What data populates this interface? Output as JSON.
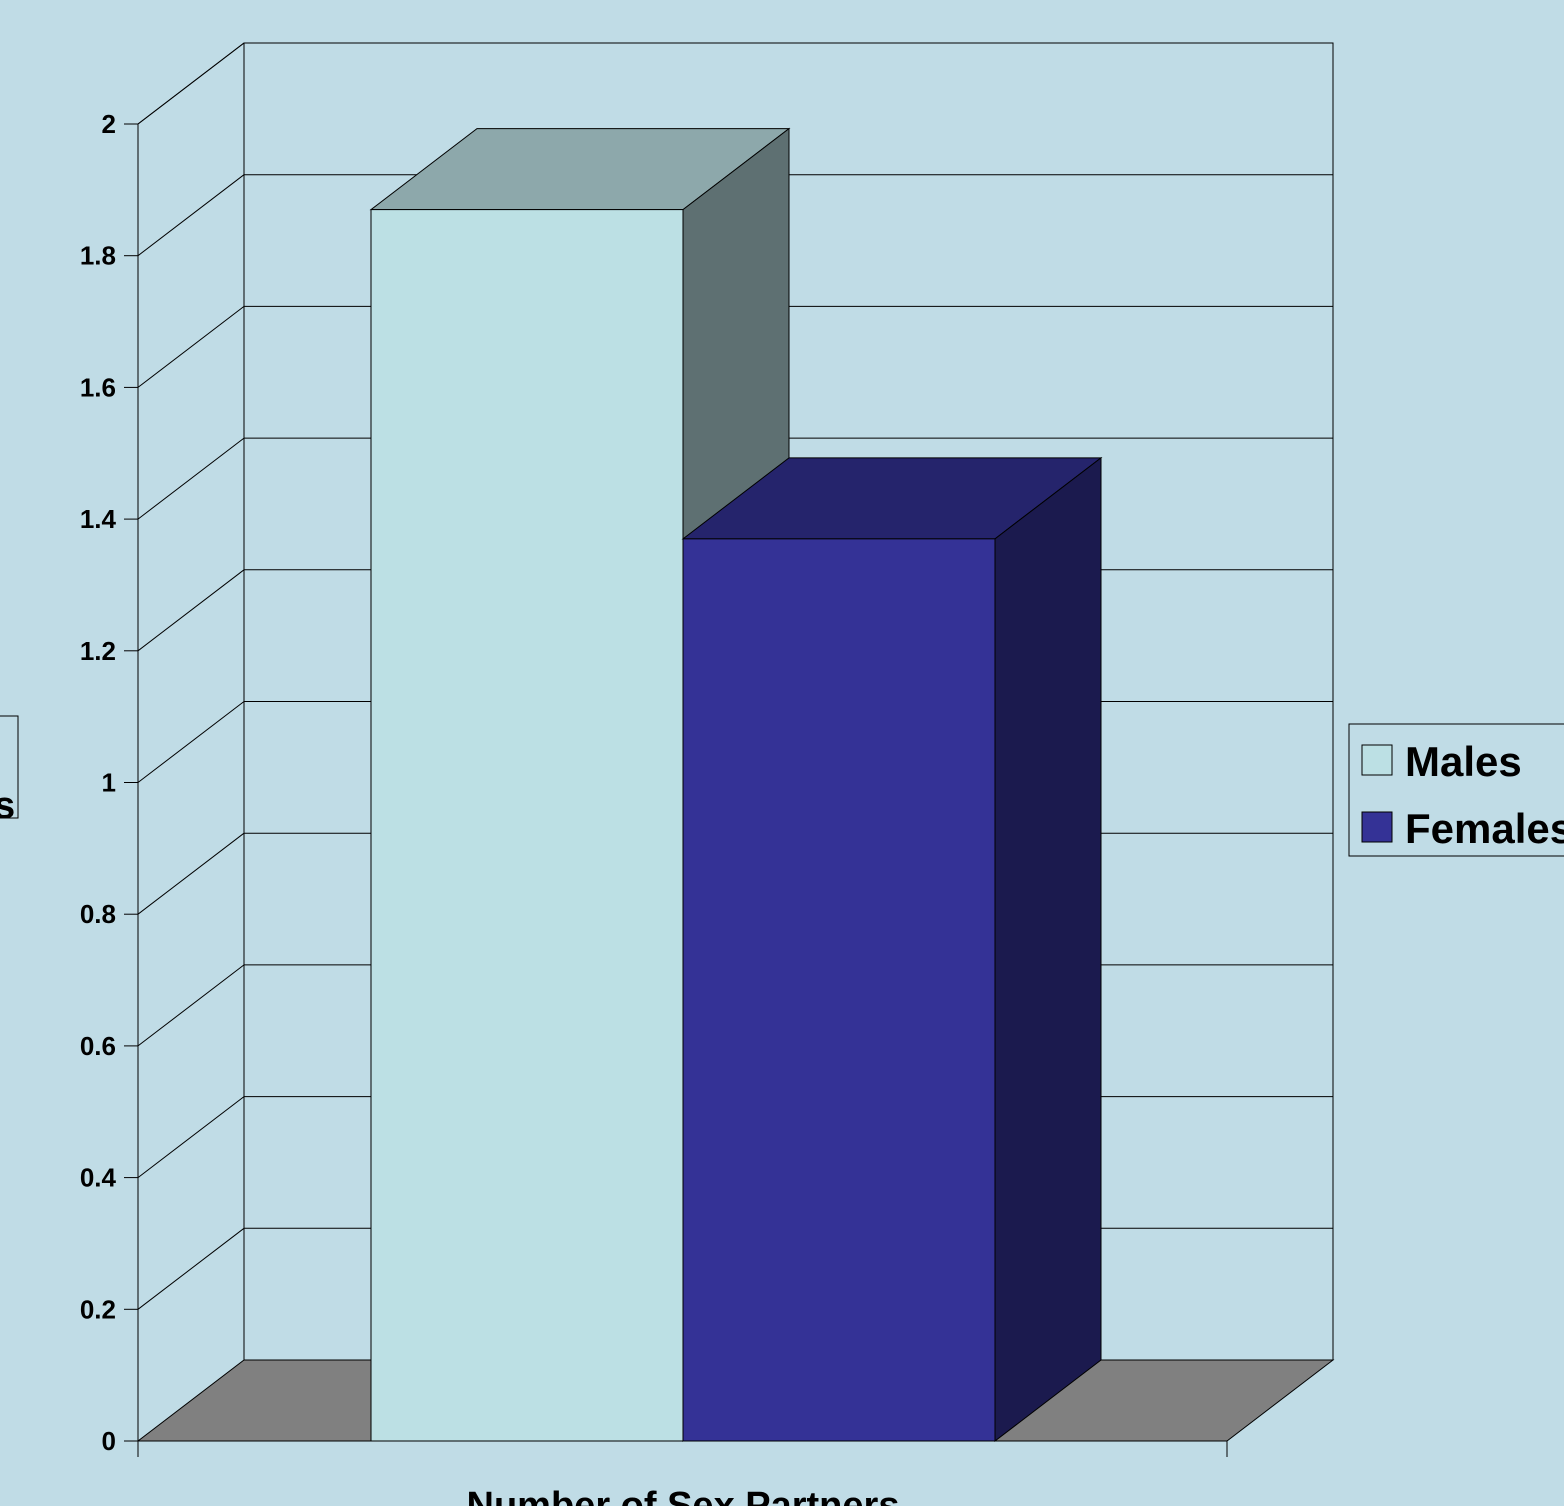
{
  "chart_data": {
    "type": "bar",
    "title": "",
    "xlabel": "Number of Sex Partners",
    "ylabel": "",
    "ylabel_visible_fragment": "s",
    "categories": [
      ""
    ],
    "series": [
      {
        "name": "Males",
        "values": [
          1.87
        ],
        "color": "#bce0e4"
      },
      {
        "name": "Females",
        "values": [
          1.37
        ],
        "color": "#343296"
      }
    ],
    "ylim": [
      0,
      2
    ],
    "y_ticks": [
      "0",
      "0.2",
      "0.4",
      "0.6",
      "0.8",
      "1",
      "1.2",
      "1.4",
      "1.6",
      "1.8",
      "2"
    ],
    "grid": true,
    "legend": "right",
    "three_d": true
  },
  "colors": {
    "background": "#c0dce6",
    "floor": "#808080",
    "grid_line": "#000000"
  }
}
